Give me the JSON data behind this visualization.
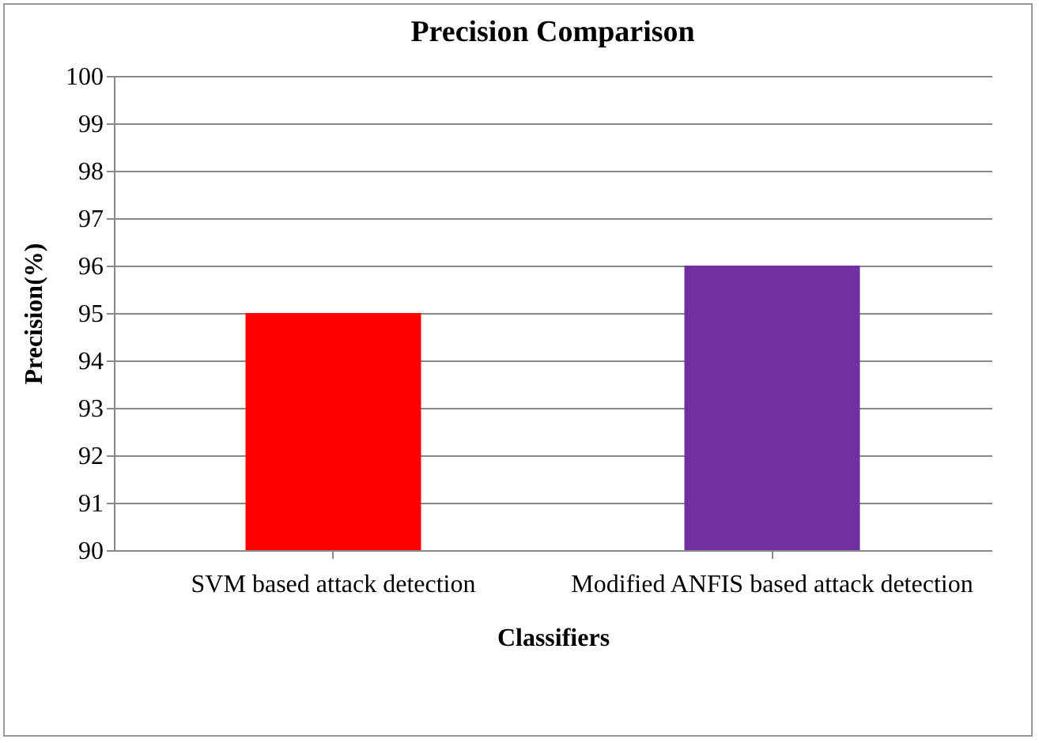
{
  "chart_data": {
    "type": "bar",
    "title": "Precision Comparison",
    "xlabel": "Classifiers",
    "ylabel": "Precision(%)",
    "categories": [
      "SVM based attack detection",
      "Modified ANFIS based attack detection"
    ],
    "values": [
      95,
      96
    ],
    "colors": [
      "#ff0000",
      "#7030a0"
    ],
    "ylim": [
      90,
      100
    ],
    "yticks": [
      90,
      91,
      92,
      93,
      94,
      95,
      96,
      97,
      98,
      99,
      100
    ],
    "grid": "y",
    "legend": false
  }
}
